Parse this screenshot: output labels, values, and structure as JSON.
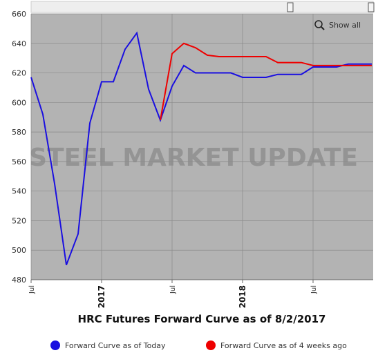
{
  "chart_data": {
    "type": "line",
    "title": "HRC Futures Forward Curve as of 8/2/2017",
    "watermark": "STEEL MARKET UPDATE",
    "button": "Show all",
    "categories": [
      "Jul",
      null,
      null,
      null,
      null,
      null,
      "2017",
      null,
      null,
      null,
      null,
      null,
      "Jul",
      null,
      null,
      null,
      null,
      null,
      "2018",
      null,
      null,
      null,
      null,
      null,
      "Jul",
      null,
      null,
      null,
      null,
      null
    ],
    "series": [
      {
        "name": "Forward Curve as of Today",
        "color": "#1a0fe0",
        "values": [
          617,
          592,
          545,
          490,
          511,
          586,
          614,
          614,
          636,
          647,
          609,
          588,
          611,
          625,
          620,
          620,
          620,
          620,
          617,
          617,
          617,
          619,
          619,
          619,
          624,
          624,
          624,
          626,
          626,
          626
        ]
      },
      {
        "name": "Forward Curve as of 4 weeks ago",
        "color": "#ee0000",
        "values": [
          null,
          null,
          null,
          null,
          null,
          null,
          null,
          null,
          null,
          null,
          null,
          588,
          633,
          640,
          637,
          632,
          631,
          631,
          631,
          631,
          631,
          627,
          627,
          627,
          625,
          625,
          625,
          625,
          625,
          625
        ]
      }
    ],
    "ylim": [
      480,
      660
    ],
    "yticks": [
      480,
      500,
      520,
      540,
      560,
      580,
      600,
      620,
      640,
      660
    ],
    "grid": true
  }
}
